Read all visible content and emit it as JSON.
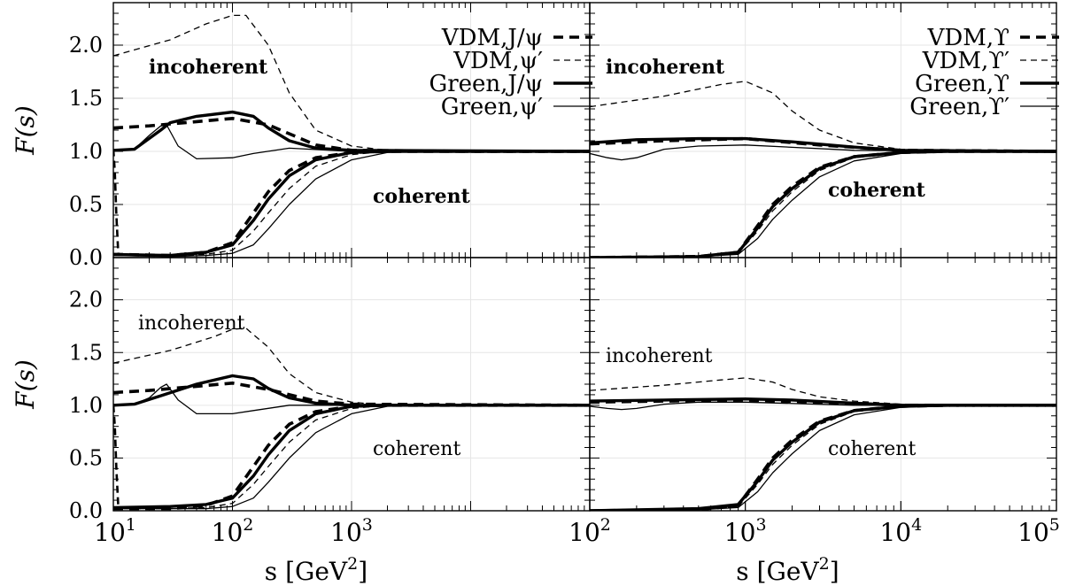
{
  "chart_data": [
    {
      "type": "line",
      "panel": "top-left",
      "x_scale": "log",
      "xlim": [
        10,
        100000
      ],
      "ylim": [
        0,
        2.4
      ],
      "ylabel": "F(s)",
      "xlabel": "",
      "y_ticks": [
        "0.0",
        "0.5",
        "1.0",
        "1.5",
        "2.0"
      ],
      "x_tick_labels": [],
      "grid": true,
      "legend_position": "top-right",
      "legend": [
        "VDM,J/ψ",
        "VDM,ψ′",
        "Green,J/ψ",
        "Green,ψ′"
      ],
      "annotations": [
        "incoherent",
        "coherent"
      ],
      "series": [
        {
          "name": "VDM,J/ψ",
          "group": "incoherent",
          "x": [
            10,
            20,
            50,
            100,
            200,
            500,
            1000,
            10000,
            100000
          ],
          "y": [
            1.22,
            1.24,
            1.28,
            1.31,
            1.25,
            1.06,
            1.01,
            1.0,
            1.0
          ]
        },
        {
          "name": "VDM,ψ′",
          "group": "incoherent",
          "x": [
            10,
            30,
            60,
            100,
            130,
            200,
            300,
            500,
            1000,
            2000,
            100000
          ],
          "y": [
            1.9,
            2.05,
            2.2,
            2.28,
            2.28,
            2.0,
            1.55,
            1.2,
            1.05,
            1.01,
            1.0
          ]
        },
        {
          "name": "Green,J/ψ",
          "group": "incoherent",
          "x": [
            10,
            15,
            25,
            30,
            50,
            100,
            150,
            200,
            300,
            500,
            1000,
            100000
          ],
          "y": [
            1.01,
            1.02,
            1.2,
            1.27,
            1.33,
            1.37,
            1.33,
            1.22,
            1.1,
            1.03,
            1.01,
            1.0
          ]
        },
        {
          "name": "Green,ψ′",
          "group": "incoherent",
          "x": [
            10,
            15,
            20,
            25,
            28,
            35,
            50,
            100,
            150,
            300,
            1000,
            100000
          ],
          "y": [
            1.0,
            1.02,
            1.15,
            1.24,
            1.25,
            1.05,
            0.93,
            0.94,
            0.98,
            1.03,
            1.0,
            1.0
          ]
        },
        {
          "name": "VDM,J/ψ",
          "group": "coherent",
          "x": [
            10,
            30,
            60,
            100,
            150,
            200,
            300,
            500,
            1000,
            2000,
            100000
          ],
          "y": [
            0.03,
            0.02,
            0.05,
            0.14,
            0.42,
            0.62,
            0.82,
            0.94,
            0.99,
            1.0,
            1.0
          ]
        },
        {
          "name": "VDM,ψ′",
          "group": "coherent",
          "x": [
            10,
            30,
            60,
            100,
            150,
            200,
            300,
            500,
            1000,
            2000,
            100000
          ],
          "y": [
            0.03,
            0.02,
            0.03,
            0.07,
            0.25,
            0.42,
            0.65,
            0.86,
            0.97,
            1.0,
            1.0
          ]
        },
        {
          "name": "Green,J/ψ",
          "group": "coherent",
          "x": [
            10,
            30,
            60,
            100,
            150,
            200,
            300,
            500,
            1000,
            2000,
            100000
          ],
          "y": [
            0.03,
            0.02,
            0.05,
            0.12,
            0.35,
            0.55,
            0.77,
            0.92,
            0.99,
            1.0,
            1.0
          ]
        },
        {
          "name": "Green,ψ′",
          "group": "coherent",
          "x": [
            10,
            30,
            60,
            100,
            150,
            200,
            300,
            500,
            1000,
            2000,
            5000,
            100000
          ],
          "y": [
            0.02,
            0.01,
            0.02,
            0.04,
            0.12,
            0.27,
            0.5,
            0.74,
            0.92,
            0.99,
            1.0,
            1.0
          ]
        },
        {
          "name": "",
          "group": "threshold",
          "x": [
            10,
            10.3,
            10.6,
            11.0
          ],
          "y": [
            1.02,
            0.8,
            0.4,
            0.03
          ]
        }
      ]
    },
    {
      "type": "line",
      "panel": "top-right",
      "x_scale": "log",
      "xlim": [
        100,
        100000
      ],
      "ylim": [
        0,
        2.4
      ],
      "ylabel": "",
      "xlabel": "",
      "x_tick_labels": [],
      "grid": true,
      "legend_position": "top-right",
      "legend": [
        "VDM,ϒ",
        "VDM,ϒ′",
        "Green,ϒ",
        "Green,ϒ′"
      ],
      "annotations": [
        "incoherent",
        "coherent"
      ],
      "series": [
        {
          "name": "VDM,ϒ",
          "group": "incoherent",
          "x": [
            100,
            300,
            1000,
            3000,
            10000,
            100000
          ],
          "y": [
            1.07,
            1.1,
            1.12,
            1.06,
            1.01,
            1.0
          ]
        },
        {
          "name": "VDM,ϒ′",
          "group": "incoherent",
          "x": [
            100,
            300,
            700,
            1000,
            1500,
            2000,
            3000,
            5000,
            10000,
            20000,
            100000
          ],
          "y": [
            1.42,
            1.52,
            1.63,
            1.66,
            1.55,
            1.38,
            1.2,
            1.08,
            1.02,
            1.0,
            1.0
          ]
        },
        {
          "name": "Green,ϒ",
          "group": "incoherent",
          "x": [
            100,
            200,
            500,
            1000,
            2000,
            5000,
            10000,
            100000
          ],
          "y": [
            1.08,
            1.11,
            1.12,
            1.12,
            1.09,
            1.04,
            1.01,
            1.0
          ]
        },
        {
          "name": "Green,ϒ′",
          "group": "incoherent",
          "x": [
            100,
            130,
            160,
            200,
            300,
            500,
            1000,
            5000,
            100000
          ],
          "y": [
            0.98,
            0.94,
            0.92,
            0.94,
            1.02,
            1.05,
            1.06,
            1.01,
            1.0
          ]
        },
        {
          "name": "VDM,ϒ",
          "group": "coherent",
          "x": [
            100,
            500,
            900,
            1200,
            1500,
            2000,
            3000,
            5000,
            10000,
            20000,
            100000
          ],
          "y": [
            0.0,
            0.01,
            0.05,
            0.3,
            0.5,
            0.67,
            0.85,
            0.95,
            0.99,
            1.0,
            1.0
          ]
        },
        {
          "name": "VDM,ϒ′",
          "group": "coherent",
          "x": [
            100,
            500,
            900,
            1200,
            1500,
            2000,
            3000,
            5000,
            10000,
            20000,
            100000
          ],
          "y": [
            0.0,
            0.01,
            0.04,
            0.25,
            0.44,
            0.62,
            0.82,
            0.94,
            0.99,
            1.0,
            1.0
          ]
        },
        {
          "name": "Green,ϒ",
          "group": "coherent",
          "x": [
            100,
            500,
            900,
            1200,
            1500,
            2000,
            3000,
            5000,
            10000,
            20000,
            100000
          ],
          "y": [
            0.0,
            0.01,
            0.05,
            0.28,
            0.48,
            0.65,
            0.84,
            0.95,
            0.99,
            1.0,
            1.0
          ]
        },
        {
          "name": "Green,ϒ′",
          "group": "coherent",
          "x": [
            100,
            500,
            900,
            1200,
            1500,
            2000,
            3000,
            5000,
            10000,
            20000,
            100000
          ],
          "y": [
            0.0,
            0.01,
            0.03,
            0.18,
            0.36,
            0.54,
            0.76,
            0.91,
            0.98,
            1.0,
            1.0
          ]
        }
      ]
    },
    {
      "type": "line",
      "panel": "bottom-left",
      "x_scale": "log",
      "xlim": [
        10,
        100000
      ],
      "ylim": [
        0,
        2.4
      ],
      "ylabel": "F(s)",
      "xlabel": "s [GeV²]",
      "y_ticks": [
        "0.0",
        "0.5",
        "1.0",
        "1.5",
        "2.0"
      ],
      "x_tick_labels": [
        "10¹",
        "10²",
        "10³"
      ],
      "grid": true,
      "annotations": [
        "incoherent",
        "coherent"
      ],
      "series": [
        {
          "name": "VDM,J/ψ",
          "group": "incoherent",
          "x": [
            10,
            20,
            50,
            100,
            200,
            500,
            1000,
            100000
          ],
          "y": [
            1.12,
            1.14,
            1.18,
            1.21,
            1.15,
            1.04,
            1.01,
            1.0
          ]
        },
        {
          "name": "VDM,ψ′",
          "group": "incoherent",
          "x": [
            10,
            30,
            70,
            100,
            130,
            200,
            300,
            500,
            1000,
            2000,
            100000
          ],
          "y": [
            1.4,
            1.52,
            1.65,
            1.72,
            1.73,
            1.55,
            1.3,
            1.12,
            1.03,
            1.0,
            1.0
          ]
        },
        {
          "name": "Green,J/ψ",
          "group": "incoherent",
          "x": [
            10,
            15,
            25,
            50,
            100,
            150,
            200,
            300,
            500,
            1000,
            100000
          ],
          "y": [
            1.0,
            1.01,
            1.09,
            1.2,
            1.28,
            1.25,
            1.16,
            1.07,
            1.02,
            1.0,
            1.0
          ]
        },
        {
          "name": "Green,ψ′",
          "group": "incoherent",
          "x": [
            10,
            15,
            20,
            25,
            28,
            35,
            50,
            100,
            150,
            300,
            1000,
            100000
          ],
          "y": [
            1.0,
            1.01,
            1.07,
            1.17,
            1.2,
            1.05,
            0.92,
            0.92,
            0.95,
            1.0,
            1.0,
            1.0
          ]
        },
        {
          "name": "VDM,J/ψ",
          "group": "coherent",
          "x": [
            10,
            30,
            60,
            100,
            150,
            200,
            300,
            500,
            1000,
            2000,
            100000
          ],
          "y": [
            0.02,
            0.02,
            0.05,
            0.14,
            0.42,
            0.62,
            0.82,
            0.94,
            0.99,
            1.0,
            1.0
          ]
        },
        {
          "name": "VDM,ψ′",
          "group": "coherent",
          "x": [
            10,
            30,
            60,
            100,
            150,
            200,
            300,
            500,
            1000,
            2000,
            100000
          ],
          "y": [
            0.02,
            0.02,
            0.03,
            0.07,
            0.25,
            0.42,
            0.65,
            0.86,
            0.97,
            1.0,
            1.0
          ]
        },
        {
          "name": "Green,J/ψ",
          "group": "coherent",
          "x": [
            10,
            30,
            60,
            100,
            150,
            200,
            300,
            500,
            1000,
            2000,
            100000
          ],
          "y": [
            0.03,
            0.04,
            0.06,
            0.12,
            0.33,
            0.53,
            0.76,
            0.92,
            0.99,
            1.0,
            1.0
          ]
        },
        {
          "name": "Green,ψ′",
          "group": "coherent",
          "x": [
            10,
            30,
            60,
            100,
            150,
            200,
            300,
            500,
            1000,
            2000,
            5000,
            100000
          ],
          "y": [
            0.02,
            0.02,
            0.02,
            0.04,
            0.12,
            0.27,
            0.5,
            0.74,
            0.92,
            0.99,
            1.0,
            1.0
          ]
        },
        {
          "name": "",
          "group": "threshold",
          "x": [
            10,
            10.3,
            10.6,
            11.0
          ],
          "y": [
            1.0,
            0.8,
            0.4,
            0.03
          ]
        }
      ]
    },
    {
      "type": "line",
      "panel": "bottom-right",
      "x_scale": "log",
      "xlim": [
        100,
        100000
      ],
      "ylim": [
        0,
        2.4
      ],
      "ylabel": "",
      "xlabel": "s [GeV²]",
      "x_tick_labels": [
        "10²",
        "10³",
        "10⁴",
        "10⁵"
      ],
      "grid": true,
      "annotations": [
        "incoherent",
        "coherent"
      ],
      "series": [
        {
          "name": "VDM,ϒ",
          "group": "incoherent",
          "x": [
            100,
            300,
            1000,
            3000,
            10000,
            100000
          ],
          "y": [
            1.03,
            1.04,
            1.05,
            1.03,
            1.0,
            1.0
          ]
        },
        {
          "name": "VDM,ϒ′",
          "group": "incoherent",
          "x": [
            100,
            300,
            700,
            1000,
            1500,
            2000,
            3000,
            5000,
            10000,
            20000,
            100000
          ],
          "y": [
            1.14,
            1.19,
            1.24,
            1.26,
            1.22,
            1.15,
            1.08,
            1.04,
            1.01,
            1.0,
            1.0
          ]
        },
        {
          "name": "Green,ϒ",
          "group": "incoherent",
          "x": [
            100,
            300,
            1000,
            2000,
            5000,
            10000,
            100000
          ],
          "y": [
            1.04,
            1.05,
            1.06,
            1.05,
            1.02,
            1.0,
            1.0
          ]
        },
        {
          "name": "Green,ϒ′",
          "group": "incoherent",
          "x": [
            100,
            130,
            160,
            200,
            300,
            500,
            1000,
            5000,
            100000
          ],
          "y": [
            0.99,
            0.97,
            0.96,
            0.97,
            1.01,
            1.03,
            1.03,
            1.0,
            1.0
          ]
        },
        {
          "name": "VDM,ϒ",
          "group": "coherent",
          "x": [
            100,
            500,
            900,
            1200,
            1500,
            2000,
            3000,
            5000,
            10000,
            20000,
            100000
          ],
          "y": [
            0.0,
            0.01,
            0.05,
            0.3,
            0.5,
            0.67,
            0.85,
            0.95,
            0.99,
            1.0,
            1.0
          ]
        },
        {
          "name": "VDM,ϒ′",
          "group": "coherent",
          "x": [
            100,
            500,
            900,
            1200,
            1500,
            2000,
            3000,
            5000,
            10000,
            20000,
            100000
          ],
          "y": [
            0.0,
            0.01,
            0.04,
            0.25,
            0.44,
            0.62,
            0.82,
            0.94,
            0.99,
            1.0,
            1.0
          ]
        },
        {
          "name": "Green,ϒ",
          "group": "coherent",
          "x": [
            100,
            500,
            900,
            1200,
            1500,
            2000,
            3000,
            5000,
            10000,
            20000,
            100000
          ],
          "y": [
            0.0,
            0.02,
            0.06,
            0.28,
            0.48,
            0.65,
            0.84,
            0.95,
            0.99,
            1.0,
            1.0
          ]
        },
        {
          "name": "Green,ϒ′",
          "group": "coherent",
          "x": [
            100,
            500,
            900,
            1200,
            1500,
            2000,
            3000,
            5000,
            10000,
            20000,
            100000
          ],
          "y": [
            0.0,
            0.01,
            0.03,
            0.18,
            0.36,
            0.54,
            0.76,
            0.91,
            0.98,
            1.0,
            1.0
          ]
        }
      ]
    }
  ]
}
